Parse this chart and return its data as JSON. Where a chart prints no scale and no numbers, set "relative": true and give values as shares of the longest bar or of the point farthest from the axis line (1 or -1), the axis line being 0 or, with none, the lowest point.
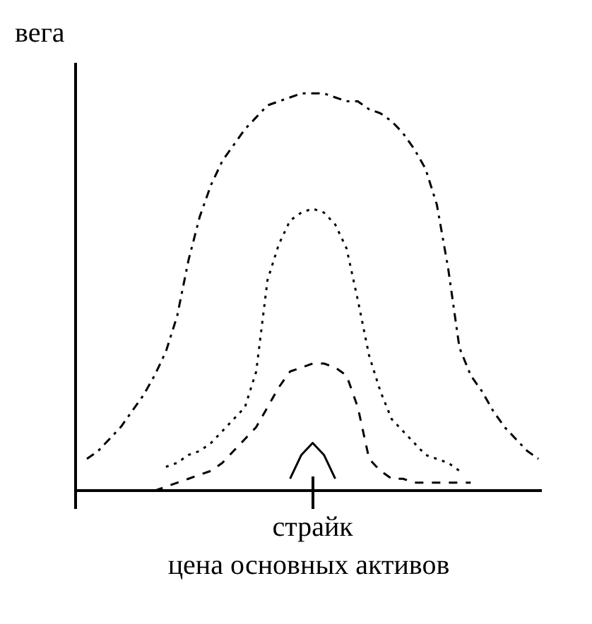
{
  "chart_data": {
    "type": "line",
    "relative": true,
    "ylabel": "вега",
    "xlabel": "цена основных активов",
    "marker": "none",
    "annotations": [
      "страйк"
    ],
    "categories": [
      null,
      null,
      null,
      null,
      null,
      null,
      null,
      null,
      null,
      null,
      null,
      null,
      null,
      null,
      null,
      null,
      null,
      null,
      null,
      null,
      null,
      null,
      null,
      null,
      null,
      null,
      null,
      null,
      null,
      null,
      null,
      null,
      null,
      null,
      null,
      null,
      null,
      null,
      null,
      null,
      null
    ],
    "series": [
      {
        "color": "#000000",
        "line_style": "dashdot",
        "values": [
          0.08,
          0.1,
          0.13,
          0.16,
          0.2,
          0.24,
          0.29,
          0.35,
          0.44,
          0.58,
          0.69,
          0.77,
          0.83,
          0.87,
          0.91,
          0.94,
          0.97,
          0.98,
          0.99,
          1.0,
          1.0,
          1.0,
          0.99,
          0.98,
          0.98,
          0.96,
          0.95,
          0.93,
          0.9,
          0.86,
          0.81,
          0.72,
          0.56,
          0.36,
          0.29,
          0.25,
          0.2,
          0.16,
          0.13,
          0.1,
          0.08
        ]
      },
      {
        "color": "#000000",
        "line_style": "dotted",
        "values": [
          null,
          null,
          null,
          null,
          null,
          null,
          null,
          0.06,
          0.07,
          0.09,
          0.1,
          0.12,
          0.15,
          0.18,
          0.21,
          0.3,
          0.53,
          0.62,
          0.68,
          0.7,
          0.71,
          0.7,
          0.67,
          0.61,
          0.48,
          0.34,
          0.25,
          0.18,
          0.15,
          0.12,
          0.09,
          0.08,
          0.07,
          0.05,
          null,
          null,
          null,
          null,
          null,
          null,
          null
        ]
      },
      {
        "color": "#000000",
        "line_style": "dashed",
        "values": [
          null,
          null,
          null,
          null,
          null,
          null,
          0.0,
          0.01,
          0.02,
          0.03,
          0.04,
          0.05,
          0.07,
          0.1,
          0.13,
          0.16,
          0.21,
          0.26,
          0.3,
          0.31,
          0.32,
          0.32,
          0.31,
          0.29,
          0.21,
          0.08,
          0.05,
          0.03,
          0.03,
          0.02,
          0.02,
          0.02,
          0.02,
          0.02,
          0.02,
          null,
          null,
          null,
          null,
          null,
          null
        ]
      },
      {
        "color": "#000000",
        "line_style": "solid",
        "values": [
          null,
          null,
          null,
          null,
          null,
          null,
          null,
          null,
          null,
          null,
          null,
          null,
          null,
          null,
          null,
          null,
          null,
          null,
          0.03,
          0.09,
          0.12,
          0.09,
          0.03,
          null,
          null,
          null,
          null,
          null,
          null,
          null,
          null,
          null,
          null,
          null,
          null,
          null,
          null,
          null,
          null,
          null,
          null
        ]
      }
    ]
  }
}
